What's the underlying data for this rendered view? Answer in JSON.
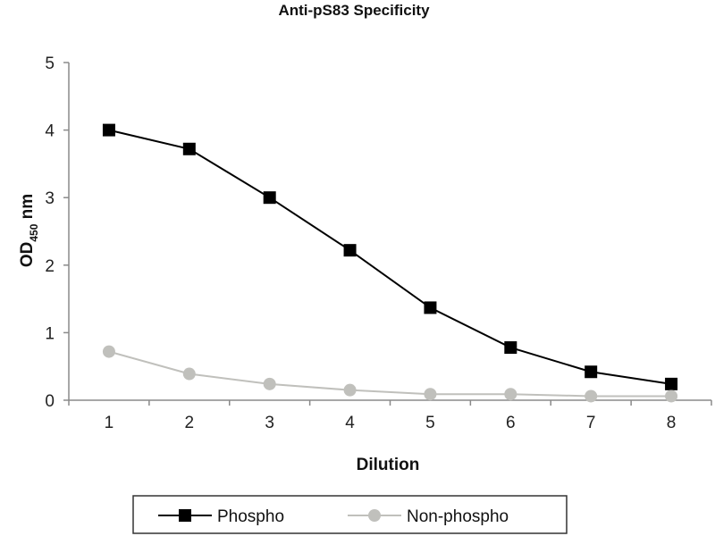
{
  "chart_data": {
    "type": "line",
    "title": "Anti-pS83 Specificity",
    "xlabel": "Dilution",
    "ylabel": {
      "main": "OD",
      "sub": "450",
      "unit": " nm"
    },
    "x": [
      1,
      2,
      3,
      4,
      5,
      6,
      7,
      8
    ],
    "xlim": [
      0.5,
      8.5
    ],
    "ylim": [
      0,
      5
    ],
    "yticks": [
      0,
      1,
      2,
      3,
      4,
      5
    ],
    "grid": false,
    "legend": "bottom",
    "series": [
      {
        "name": "Phospho",
        "values": [
          4.0,
          3.72,
          3.0,
          2.22,
          1.37,
          0.78,
          0.42,
          0.24
        ],
        "color": "#000000",
        "marker": "square"
      },
      {
        "name": "Non-phospho",
        "values": [
          0.72,
          0.39,
          0.24,
          0.15,
          0.09,
          0.09,
          0.06,
          0.06
        ],
        "color": "#c0c0bc",
        "marker": "circle"
      }
    ]
  }
}
